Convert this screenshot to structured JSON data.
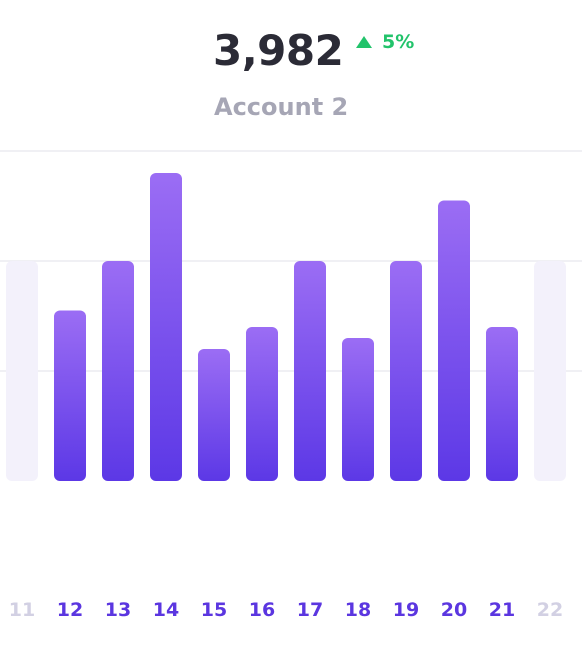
{
  "header": {
    "value": "3,982",
    "change": "5%",
    "change_direction": "up",
    "account": "Account 2"
  },
  "colors": {
    "bar_top": "#9b6df4",
    "bar_bottom": "#5c38e6",
    "bar_inactive": "#f3f1fb",
    "label_active": "#5b36e0",
    "label_inactive": "#d2d0e3",
    "grid": "#ececf1",
    "positive": "#22c36b"
  },
  "chart_data": {
    "type": "bar",
    "categories": [
      "11",
      "12",
      "13",
      "14",
      "15",
      "16",
      "17",
      "18",
      "19",
      "20",
      "21",
      "22"
    ],
    "values": [
      2.0,
      1.55,
      2.0,
      2.8,
      1.2,
      1.4,
      2.0,
      1.3,
      2.0,
      2.55,
      1.4,
      2.0
    ],
    "active": [
      false,
      true,
      true,
      true,
      true,
      true,
      true,
      true,
      true,
      true,
      true,
      false
    ],
    "ylim": [
      0,
      2.8
    ],
    "grid": true,
    "gridlines": [
      1,
      2,
      3
    ]
  }
}
